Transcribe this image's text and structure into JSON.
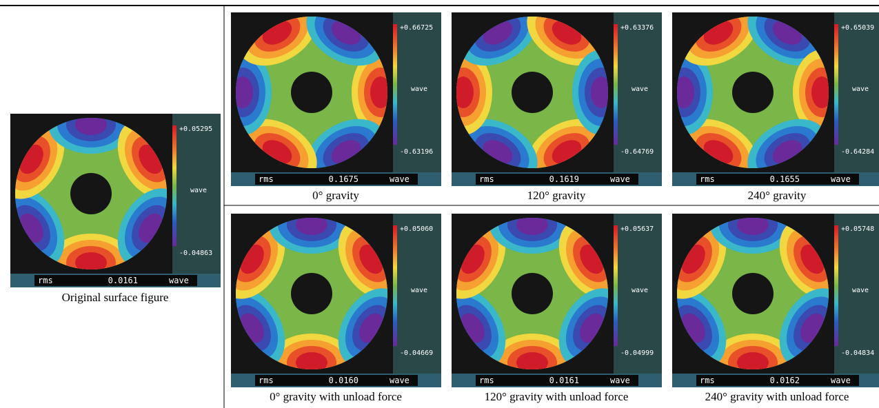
{
  "panels": [
    {
      "max": "+0.05295",
      "min": "-0.04863",
      "unit": "wave",
      "rms_label": "rms",
      "rms": "0.0161",
      "rms_unit": "wave",
      "caption": "Original surface figure"
    },
    {
      "max": "+0.66725",
      "min": "-0.63196",
      "unit": "wave",
      "rms_label": "rms",
      "rms": "0.1675",
      "rms_unit": "wave",
      "caption": "0° gravity"
    },
    {
      "max": "+0.63376",
      "min": "-0.64769",
      "unit": "wave",
      "rms_label": "rms",
      "rms": "0.1619",
      "rms_unit": "wave",
      "caption": "120° gravity"
    },
    {
      "max": "+0.65039",
      "min": "-0.64284",
      "unit": "wave",
      "rms_label": "rms",
      "rms": "0.1655",
      "rms_unit": "wave",
      "caption": "240° gravity"
    },
    {
      "max": "+0.05060",
      "min": "-0.04669",
      "unit": "wave",
      "rms_label": "rms",
      "rms": "0.0160",
      "rms_unit": "wave",
      "caption": "0° gravity with unload force"
    },
    {
      "max": "+0.05637",
      "min": "-0.04999",
      "unit": "wave",
      "rms_label": "rms",
      "rms": "0.0161",
      "rms_unit": "wave",
      "caption": "120° gravity with unload force"
    },
    {
      "max": "+0.05748",
      "min": "-0.04834",
      "unit": "wave",
      "rms_label": "rms",
      "rms": "0.0162",
      "rms_unit": "wave",
      "caption": "240° gravity with unload force"
    }
  ]
}
